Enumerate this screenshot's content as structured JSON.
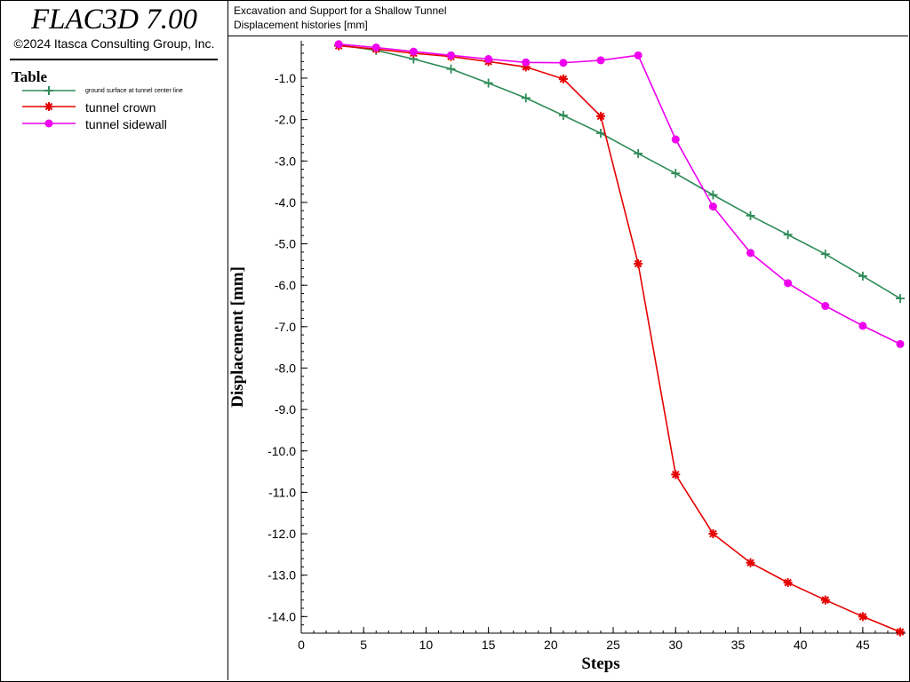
{
  "app": {
    "title": "FLAC3D 7.00",
    "copyright": "©2024 Itasca Consulting Group, Inc."
  },
  "legend": {
    "title": "Table",
    "items": [
      {
        "label": "ground surface at tunnel center line",
        "color": "#2e8b57",
        "marker": "plus"
      },
      {
        "label": "tunnel crown",
        "color": "#e60000",
        "marker": "asterisk"
      },
      {
        "label": "tunnel sidewall",
        "color": "#ee00ee",
        "marker": "circle"
      }
    ]
  },
  "header": {
    "line1": "Excavation and Support for a Shallow Tunnel",
    "line2": "Displacement histories [mm]"
  },
  "chart_data": {
    "type": "line",
    "xlabel": "Steps",
    "ylabel": "Displacement [mm]",
    "xlim": [
      0,
      48
    ],
    "ylim": [
      -14.4,
      -0.1
    ],
    "xticks": [
      0,
      5,
      10,
      15,
      20,
      25,
      30,
      35,
      40,
      45
    ],
    "yticks": [
      -1.0,
      -2.0,
      -3.0,
      -4.0,
      -5.0,
      -6.0,
      -7.0,
      -8.0,
      -9.0,
      -10.0,
      -11.0,
      -12.0,
      -13.0,
      -14.0
    ],
    "grid": false,
    "series": [
      {
        "name": "ground surface at tunnel center line",
        "color": "#2e8b57",
        "marker": "plus",
        "x": [
          3,
          6,
          9,
          12,
          15,
          18,
          21,
          24,
          27,
          30,
          33,
          36,
          39,
          42,
          45,
          48
        ],
        "y": [
          -0.2,
          -0.33,
          -0.54,
          -0.78,
          -1.12,
          -1.48,
          -1.9,
          -2.33,
          -2.82,
          -3.3,
          -3.82,
          -4.32,
          -4.78,
          -5.25,
          -5.78,
          -6.32
        ]
      },
      {
        "name": "tunnel crown",
        "color": "#e60000",
        "marker": "asterisk",
        "x": [
          3,
          6,
          9,
          12,
          15,
          18,
          21,
          24,
          27,
          30,
          33,
          36,
          39,
          42,
          45,
          48
        ],
        "y": [
          -0.22,
          -0.3,
          -0.4,
          -0.48,
          -0.6,
          -0.73,
          -1.02,
          -1.92,
          -5.48,
          -10.57,
          -12.0,
          -12.7,
          -13.18,
          -13.6,
          -14.0,
          -14.37
        ]
      },
      {
        "name": "tunnel sidewall",
        "color": "#ee00ee",
        "marker": "circle",
        "x": [
          3,
          6,
          9,
          12,
          15,
          18,
          21,
          24,
          27,
          30,
          33,
          36,
          39,
          42,
          45,
          48
        ],
        "y": [
          -0.18,
          -0.26,
          -0.36,
          -0.45,
          -0.54,
          -0.62,
          -0.63,
          -0.57,
          -0.45,
          -2.48,
          -4.1,
          -5.22,
          -5.95,
          -6.5,
          -6.98,
          -7.42
        ]
      }
    ]
  }
}
